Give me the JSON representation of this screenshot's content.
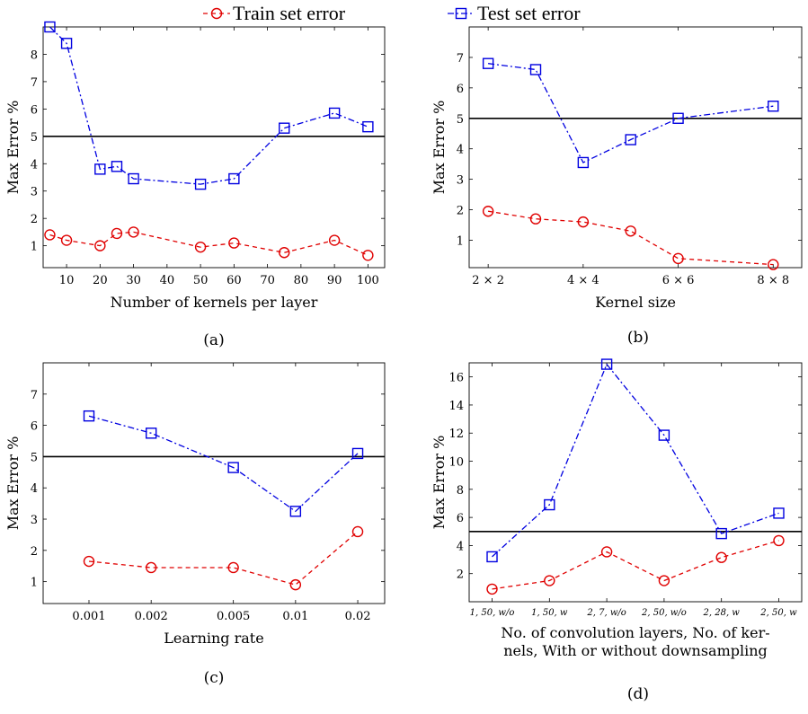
{
  "legend": [
    {
      "name": "Train set error",
      "color": "#e00000",
      "marker": "circle",
      "dash": "dashed"
    },
    {
      "name": "Test set error",
      "color": "#0000e0",
      "marker": "square",
      "dash": "dash-dot"
    }
  ],
  "chart_data": [
    {
      "type": "line",
      "caption": "(a)",
      "xlabel": "Number of kernels per layer",
      "ylabel": "Max Error %",
      "xlim": [
        3,
        105
      ],
      "ylim": [
        0.2,
        9.0
      ],
      "xticks": [
        10,
        20,
        30,
        40,
        50,
        60,
        70,
        80,
        90,
        100
      ],
      "xticklabels": [
        "10",
        "20",
        "30",
        "40",
        "50",
        "60",
        "70",
        "80",
        "90",
        "100"
      ],
      "yticks": [
        1,
        2,
        3,
        4,
        5,
        6,
        7,
        8
      ],
      "yticklabels": [
        "1",
        "2",
        "3",
        "4",
        "5",
        "6",
        "7",
        "8"
      ],
      "reference_line": 5,
      "series": [
        {
          "name": "Train set error",
          "x": [
            5,
            10,
            20,
            25,
            30,
            50,
            60,
            75,
            90,
            100
          ],
          "values": [
            1.4,
            1.2,
            1.0,
            1.45,
            1.5,
            0.95,
            1.1,
            0.75,
            1.2,
            0.65
          ]
        },
        {
          "name": "Test set error",
          "x": [
            5,
            10,
            20,
            25,
            30,
            50,
            60,
            75,
            90,
            100
          ],
          "values": [
            9.0,
            8.4,
            3.8,
            3.9,
            3.45,
            3.25,
            3.45,
            5.3,
            5.85,
            5.35
          ]
        }
      ]
    },
    {
      "type": "line",
      "caption": "(b)",
      "xlabel": "Kernel size",
      "ylabel": "Max Error %",
      "xlim": [
        1.6,
        8.6
      ],
      "ylim": [
        0.1,
        8.0
      ],
      "xticks": [
        2,
        4,
        6,
        8
      ],
      "xticklabels": [
        "2 × 2",
        "4 × 4",
        "6 × 6",
        "8 × 8"
      ],
      "yticks": [
        1,
        2,
        3,
        4,
        5,
        6,
        7
      ],
      "yticklabels": [
        "1",
        "2",
        "3",
        "4",
        "5",
        "6",
        "7"
      ],
      "reference_line": 5,
      "series": [
        {
          "name": "Train set error",
          "x": [
            2,
            3,
            4,
            5,
            6,
            8
          ],
          "values": [
            1.95,
            1.7,
            1.6,
            1.3,
            0.4,
            0.2
          ]
        },
        {
          "name": "Test set error",
          "x": [
            2,
            3,
            4,
            5,
            6,
            8
          ],
          "values": [
            6.8,
            6.6,
            3.55,
            4.3,
            5.0,
            5.4
          ]
        }
      ]
    },
    {
      "type": "line",
      "caption": "(c)",
      "xlabel": "Learning rate",
      "ylabel": "Max Error %",
      "xscale": "log",
      "xlim": [
        0.0006,
        0.027
      ],
      "ylim": [
        0.3,
        8.0
      ],
      "xticks": [
        0.001,
        0.002,
        0.005,
        0.01,
        0.02
      ],
      "xticklabels": [
        "0.001",
        "0.002",
        "0.005",
        "0.01",
        "0.02"
      ],
      "yticks": [
        1,
        2,
        3,
        4,
        5,
        6,
        7
      ],
      "yticklabels": [
        "1",
        "2",
        "3",
        "4",
        "5",
        "6",
        "7"
      ],
      "reference_line": 5,
      "series": [
        {
          "name": "Train set error",
          "x": [
            0.001,
            0.002,
            0.005,
            0.01,
            0.02
          ],
          "values": [
            1.65,
            1.45,
            1.45,
            0.9,
            2.6
          ]
        },
        {
          "name": "Test set error",
          "x": [
            0.001,
            0.002,
            0.005,
            0.01,
            0.02
          ],
          "values": [
            6.3,
            5.75,
            4.65,
            3.25,
            5.1
          ]
        }
      ]
    },
    {
      "type": "line",
      "caption": "(d)",
      "xlabel": "No. of convolution layers, No. of ker-",
      "xlabel2": "nels, With or without downsampling",
      "ylabel": "Max Error %",
      "xlim": [
        -0.4,
        5.4
      ],
      "ylim": [
        0.0,
        17.0
      ],
      "xticks": [
        0,
        1,
        2,
        3,
        4,
        5
      ],
      "xticklabels": [
        "1, 50, w/o",
        "1, 50, w",
        "2, 7, w/o",
        "2, 50, w/o",
        "2, 28, w",
        "2, 50, w"
      ],
      "yticks": [
        2,
        4,
        6,
        8,
        10,
        12,
        14,
        16
      ],
      "yticklabels": [
        "2",
        "4",
        "6",
        "8",
        "10",
        "12",
        "14",
        "16"
      ],
      "reference_line": 5,
      "series": [
        {
          "name": "Train set error",
          "x": [
            0,
            1,
            2,
            3,
            4,
            5
          ],
          "values": [
            0.9,
            1.5,
            3.55,
            1.5,
            3.15,
            4.35
          ]
        },
        {
          "name": "Test set error",
          "x": [
            0,
            1,
            2,
            3,
            4,
            5
          ],
          "values": [
            3.2,
            6.9,
            16.9,
            11.85,
            4.85,
            6.3
          ]
        }
      ]
    }
  ]
}
